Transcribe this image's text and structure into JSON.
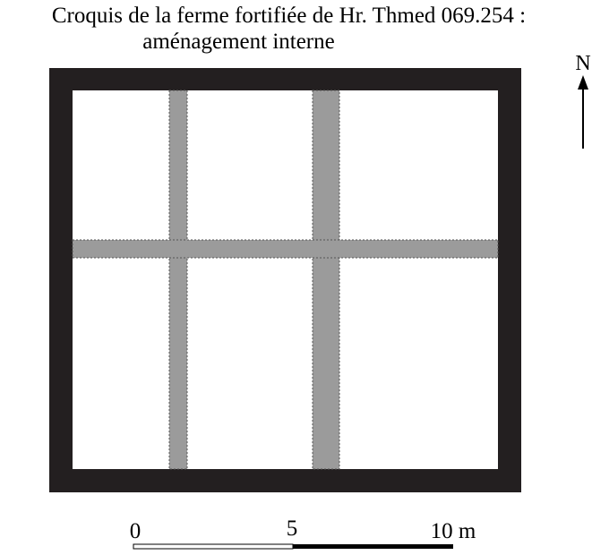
{
  "title": {
    "line1": "Croquis  de la ferme fortifiée de Hr. Thmed 069.254 :",
    "line2": "aménagement interne"
  },
  "north_arrow": {
    "label": "N",
    "icon": "north-arrow-icon"
  },
  "scale_bar": {
    "labels": [
      "0",
      "5",
      "10 m"
    ],
    "segment_fills": [
      "white",
      "black"
    ]
  },
  "colors": {
    "wall": "#231f20",
    "partition": "#9b9b9b",
    "interior": "#ffffff"
  }
}
